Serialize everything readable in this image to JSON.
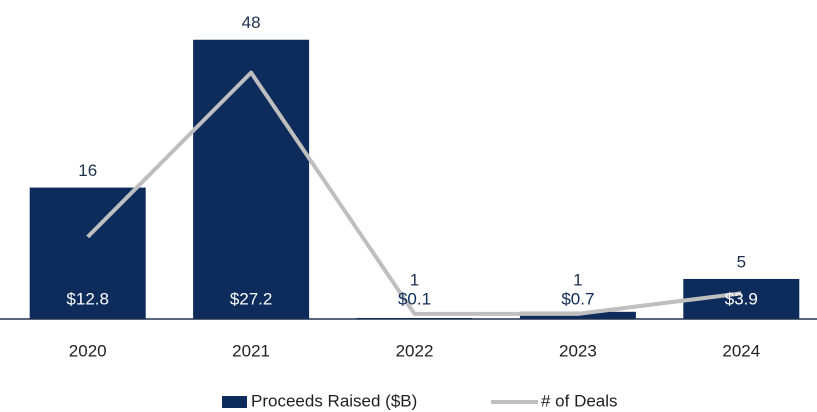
{
  "chart_data": {
    "type": "bar_line",
    "categories": [
      "2020",
      "2021",
      "2022",
      "2023",
      "2024"
    ],
    "series": [
      {
        "name": "Proceeds Raised ($B)",
        "type": "bar",
        "color": "#0d2b5b",
        "axis": "y",
        "values": [
          12.8,
          27.2,
          0.1,
          0.7,
          3.9
        ],
        "value_labels": [
          "$12.8",
          "$27.2",
          "$0.1",
          "$0.7",
          "$3.9"
        ]
      },
      {
        "name": "# of Deals",
        "type": "line",
        "color": "#bfbfbf",
        "axis": "y2",
        "values": [
          16,
          48,
          1,
          1,
          5
        ]
      }
    ],
    "ylim": [
      0,
      30
    ],
    "y2lim": [
      0,
      60
    ],
    "grid": false,
    "legend": "bottom"
  }
}
